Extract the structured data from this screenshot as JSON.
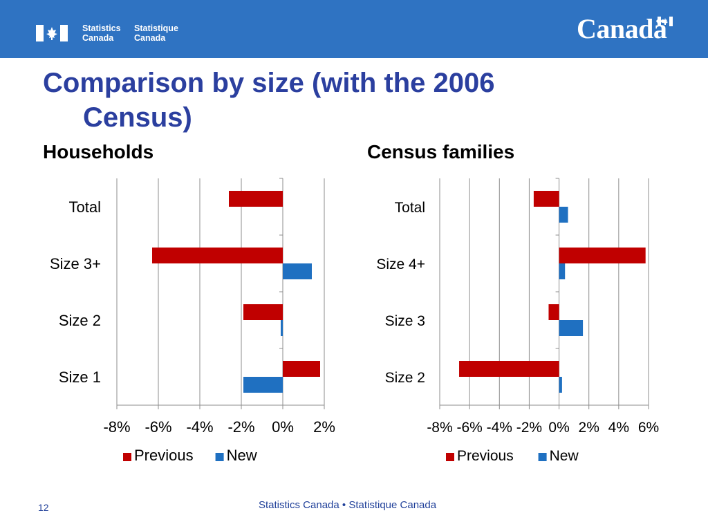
{
  "header": {
    "agency_en": [
      "Statistics",
      "Canada"
    ],
    "agency_fr": [
      "Statistique",
      "Canada"
    ],
    "wordmark": "Canadä",
    "colors": {
      "banner": "#2f73c2",
      "title": "#2b3f9f"
    },
    "icons": [
      "canada-flag-icon",
      "wordmark-flag-icon"
    ]
  },
  "slide": {
    "title_line1": "Comparison by size (with the 2006",
    "title_line2": "Census)",
    "left_subtitle": "Households",
    "right_subtitle": "Census families"
  },
  "footer": {
    "page_number": "12",
    "text": "Statistics Canada • Statistique Canada"
  },
  "chart_data": [
    {
      "type": "bar",
      "orientation": "horizontal",
      "title": "Households",
      "categories": [
        "Total",
        "Size 3+",
        "Size 2",
        "Size 1"
      ],
      "series": [
        {
          "name": "Previous",
          "color": "#c00000",
          "values": [
            -2.6,
            -6.3,
            -1.9,
            1.8
          ]
        },
        {
          "name": "New",
          "color": "#1f70c1",
          "values": [
            0,
            1.4,
            -0.1,
            -1.9
          ]
        }
      ],
      "xlim": [
        -8,
        2
      ],
      "xticks": [
        -8,
        -6,
        -4,
        -2,
        0,
        2
      ],
      "tick_labels": [
        "-8%",
        "-6%",
        "-4%",
        "-2%",
        "0%",
        "2%"
      ],
      "grid": true,
      "legend": "bottom"
    },
    {
      "type": "bar",
      "orientation": "horizontal",
      "title": "Census families",
      "categories": [
        "Total",
        "Size 4+",
        "Size 3",
        "Size 2"
      ],
      "series": [
        {
          "name": "Previous",
          "color": "#c00000",
          "values": [
            -1.7,
            5.8,
            -0.7,
            -6.7
          ]
        },
        {
          "name": "New",
          "color": "#1f70c1",
          "values": [
            0.6,
            0.4,
            1.6,
            0.2
          ]
        }
      ],
      "xlim": [
        -8,
        6
      ],
      "xticks": [
        -8,
        -6,
        -4,
        -2,
        0,
        2,
        4,
        6
      ],
      "tick_labels": [
        "-8%",
        "-6%",
        "-4%",
        "-2%",
        "0%",
        "2%",
        "4%",
        "6%"
      ],
      "grid": true,
      "legend": "bottom"
    }
  ]
}
